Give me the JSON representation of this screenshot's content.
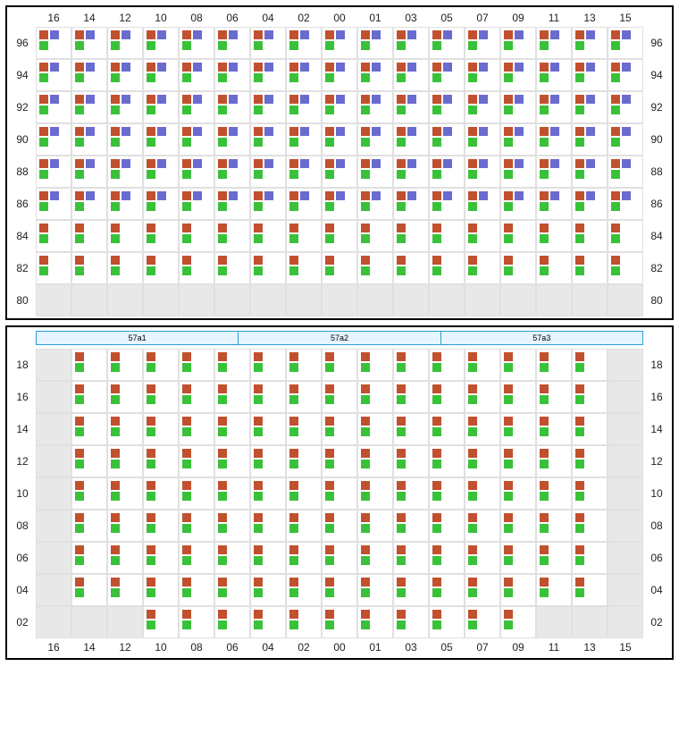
{
  "colors": {
    "red": "#c1502e",
    "purple": "#6a6bcf",
    "green": "#39c239",
    "cell_border": "#e0e0e0",
    "panel_border": "#000000",
    "empty_bg": "#e8e8e8",
    "section_border": "#2a9fd6",
    "section_bg": "#e6f5ff"
  },
  "columns": [
    "16",
    "14",
    "12",
    "10",
    "08",
    "06",
    "04",
    "02",
    "00",
    "01",
    "03",
    "05",
    "07",
    "09",
    "11",
    "13",
    "15"
  ],
  "top": {
    "rows": [
      "96",
      "94",
      "92",
      "90",
      "88",
      "86",
      "84",
      "82",
      "80"
    ],
    "cells": {
      "96": {
        "type": "rpg",
        "cols": "all"
      },
      "94": {
        "type": "rpg",
        "cols": "all"
      },
      "92": {
        "type": "rpg",
        "cols": "all"
      },
      "90": {
        "type": "rpg",
        "cols": "all"
      },
      "88": {
        "type": "rpg",
        "cols": "all"
      },
      "86": {
        "type": "rpg",
        "cols": "all"
      },
      "84": {
        "type": "rg",
        "cols": "all"
      },
      "82": {
        "type": "rg",
        "cols": "all"
      },
      "80": {
        "type": "empty",
        "cols": "all"
      }
    }
  },
  "sections": [
    "57a1",
    "57a2",
    "57a3"
  ],
  "bottom": {
    "rows": [
      "18",
      "16",
      "14",
      "12",
      "10",
      "08",
      "06",
      "04",
      "02"
    ],
    "cells": {
      "18": {
        "type": "rg",
        "empty": [
          "16",
          "15"
        ]
      },
      "16": {
        "type": "rg",
        "empty": [
          "16",
          "15"
        ]
      },
      "14": {
        "type": "rg",
        "empty": [
          "16",
          "15"
        ]
      },
      "12": {
        "type": "rg",
        "empty": [
          "16",
          "15"
        ]
      },
      "10": {
        "type": "rg",
        "empty": [
          "16",
          "15"
        ]
      },
      "08": {
        "type": "rg",
        "empty": [
          "16",
          "15"
        ]
      },
      "06": {
        "type": "rg",
        "empty": [
          "16",
          "15"
        ]
      },
      "04": {
        "type": "rg",
        "empty": [
          "16",
          "15"
        ]
      },
      "02": {
        "type": "rg",
        "empty": [
          "16",
          "14",
          "12",
          "11",
          "13",
          "15"
        ]
      }
    }
  }
}
